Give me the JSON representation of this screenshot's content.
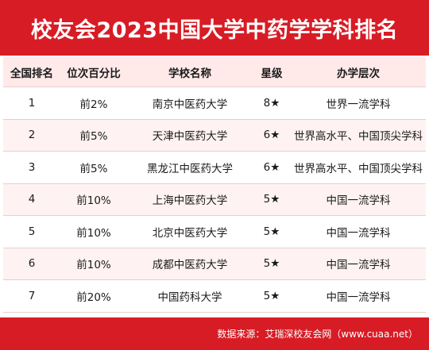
{
  "title": "校友会2023中国大学中药学学科排名",
  "headers": [
    "全国排名",
    "位次百分比",
    "学校名称",
    "星级",
    "办学层次"
  ],
  "rows": [
    {
      "rank": "1",
      "percent": "前2%",
      "school": "南京中医药大学",
      "stars": "8★",
      "level": "世界一流学科"
    },
    {
      "rank": "2",
      "percent": "前5%",
      "school": "天津中医药大学",
      "stars": "6★",
      "level": "世界高水平、中国顶尖学科"
    },
    {
      "rank": "3",
      "percent": "前5%",
      "school": "黑龙江中医药大学",
      "stars": "6★",
      "level": "世界高水平、中国顶尖学科"
    },
    {
      "rank": "4",
      "percent": "前10%",
      "school": "上海中医药大学",
      "stars": "5★",
      "level": "中国一流学科"
    },
    {
      "rank": "5",
      "percent": "前10%",
      "school": "北京中医药大学",
      "stars": "5★",
      "level": "中国一流学科"
    },
    {
      "rank": "6",
      "percent": "前10%",
      "school": "成都中医药大学",
      "stars": "5★",
      "level": "中国一流学科"
    },
    {
      "rank": "7",
      "percent": "前20%",
      "school": "中国药科大学",
      "stars": "5★",
      "level": "中国一流学科"
    }
  ],
  "footer": "数据来源：艾瑞深校友会网（www.cuaa.net）",
  "colors": {
    "brand_red": "#d81c25",
    "header_bg": "#ffe9e9",
    "alt_row_bg": "#fff2f2"
  }
}
